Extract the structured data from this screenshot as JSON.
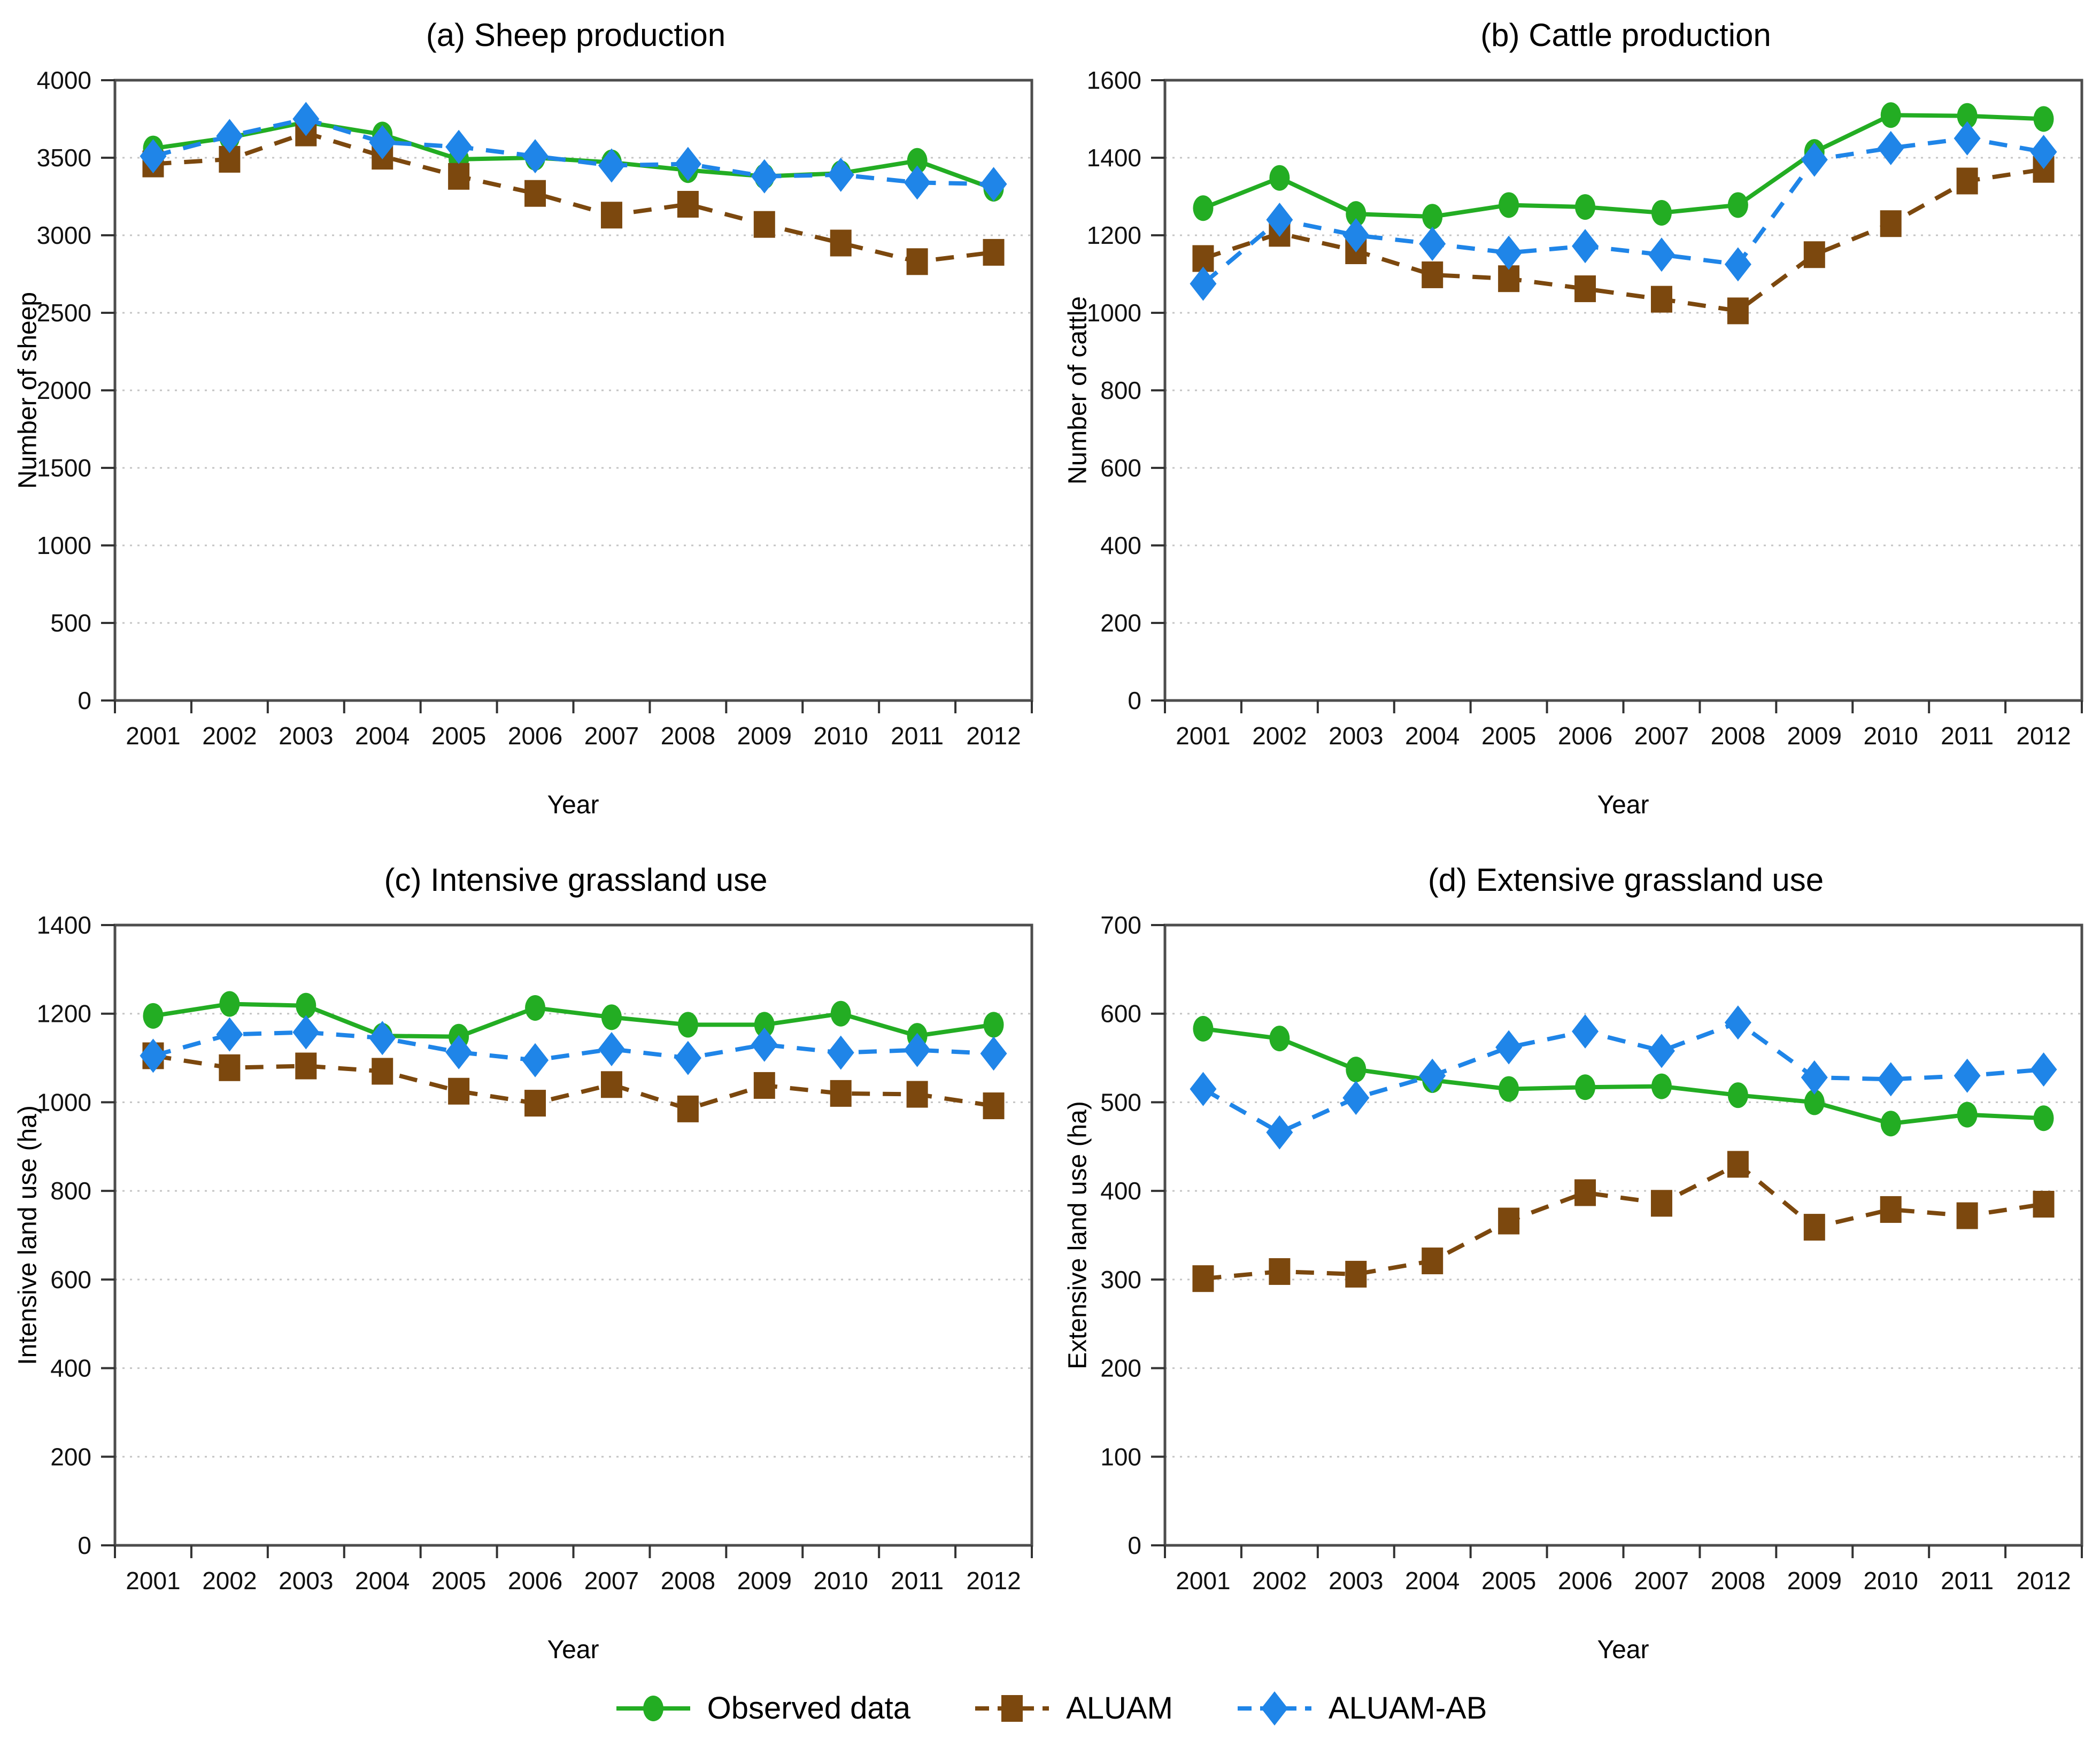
{
  "figure": {
    "x_axis_label": "Year",
    "years": [
      "2001",
      "2002",
      "2003",
      "2004",
      "2005",
      "2006",
      "2007",
      "2008",
      "2009",
      "2010",
      "2011",
      "2012"
    ]
  },
  "legend": [
    {
      "label": "Observed data",
      "color": "#23ad23",
      "marker": "circle",
      "dash": "solid"
    },
    {
      "label": "ALUAM",
      "color": "#7c480e",
      "marker": "square",
      "dash": "dashed"
    },
    {
      "label": "ALUAM-AB",
      "color": "#1f85e8",
      "marker": "diamond",
      "dash": "dashed"
    }
  ],
  "style": {
    "grid_color": "#c4c4c4",
    "box_color": "#4d4d4d",
    "tick_color": "#333333",
    "text_color": "#111111"
  },
  "chart_data": [
    {
      "type": "line",
      "panel": "a",
      "title": "(a) Sheep production",
      "xlabel": "Year",
      "ylabel": "Number of sheep",
      "ylim": [
        0,
        4000
      ],
      "ytick_step": 500,
      "grid": "horizontal-dotted",
      "legend_position": "bottom-shared",
      "categories": [
        "2001",
        "2002",
        "2003",
        "2004",
        "2005",
        "2006",
        "2007",
        "2008",
        "2009",
        "2010",
        "2011",
        "2012"
      ],
      "series": [
        {
          "name": "Observed data",
          "values": [
            3560,
            3630,
            3730,
            3650,
            3490,
            3500,
            3470,
            3420,
            3380,
            3400,
            3480,
            3300
          ]
        },
        {
          "name": "ALUAM",
          "values": [
            3460,
            3490,
            3660,
            3510,
            3380,
            3270,
            3130,
            3200,
            3070,
            2950,
            2830,
            2890
          ]
        },
        {
          "name": "ALUAM-AB",
          "values": [
            3510,
            3640,
            3750,
            3600,
            3570,
            3510,
            3450,
            3460,
            3380,
            3390,
            3340,
            3330
          ]
        }
      ]
    },
    {
      "type": "line",
      "panel": "b",
      "title": "(b) Cattle production",
      "xlabel": "Year",
      "ylabel": "Number of cattle",
      "ylim": [
        0,
        1600
      ],
      "ytick_step": 200,
      "grid": "horizontal-dotted",
      "legend_position": "bottom-shared",
      "categories": [
        "2001",
        "2002",
        "2003",
        "2004",
        "2005",
        "2006",
        "2007",
        "2008",
        "2009",
        "2010",
        "2011",
        "2012"
      ],
      "series": [
        {
          "name": "Observed data",
          "values": [
            1270,
            1348,
            1255,
            1248,
            1278,
            1273,
            1258,
            1278,
            1415,
            1510,
            1508,
            1500
          ]
        },
        {
          "name": "ALUAM",
          "values": [
            1140,
            1205,
            1160,
            1098,
            1088,
            1062,
            1035,
            1005,
            1150,
            1230,
            1340,
            1370
          ]
        },
        {
          "name": "ALUAM-AB",
          "values": [
            1075,
            1240,
            1200,
            1178,
            1155,
            1172,
            1150,
            1125,
            1395,
            1425,
            1450,
            1415
          ]
        }
      ]
    },
    {
      "type": "line",
      "panel": "c",
      "title": "(c) Intensive grassland use",
      "xlabel": "Year",
      "ylabel": "Intensive land use (ha)",
      "ylim": [
        0,
        1400
      ],
      "ytick_step": 200,
      "grid": "horizontal-dotted",
      "legend_position": "bottom-shared",
      "categories": [
        "2001",
        "2002",
        "2003",
        "2004",
        "2005",
        "2006",
        "2007",
        "2008",
        "2009",
        "2010",
        "2011",
        "2012"
      ],
      "series": [
        {
          "name": "Observed data",
          "values": [
            1195,
            1222,
            1218,
            1150,
            1148,
            1213,
            1192,
            1175,
            1175,
            1200,
            1150,
            1175
          ]
        },
        {
          "name": "ALUAM",
          "values": [
            1105,
            1078,
            1082,
            1070,
            1025,
            998,
            1040,
            985,
            1038,
            1020,
            1018,
            992
          ]
        },
        {
          "name": "ALUAM-AB",
          "values": [
            1105,
            1153,
            1158,
            1145,
            1113,
            1095,
            1120,
            1100,
            1130,
            1112,
            1118,
            1110
          ]
        }
      ]
    },
    {
      "type": "line",
      "panel": "d",
      "title": "(d) Extensive grassland use",
      "xlabel": "Year",
      "ylabel": "Extensive land use (ha)",
      "ylim": [
        0,
        700
      ],
      "ytick_step": 100,
      "grid": "horizontal-dotted",
      "legend_position": "bottom-shared",
      "categories": [
        "2001",
        "2002",
        "2003",
        "2004",
        "2005",
        "2006",
        "2007",
        "2008",
        "2009",
        "2010",
        "2011",
        "2012"
      ],
      "series": [
        {
          "name": "Observed data",
          "values": [
            583,
            572,
            537,
            525,
            515,
            517,
            518,
            508,
            500,
            476,
            486,
            482
          ]
        },
        {
          "name": "ALUAM",
          "values": [
            301,
            309,
            306,
            321,
            366,
            398,
            386,
            430,
            359,
            379,
            372,
            385
          ]
        },
        {
          "name": "ALUAM-AB",
          "values": [
            515,
            466,
            505,
            530,
            562,
            580,
            558,
            590,
            528,
            526,
            530,
            537
          ]
        }
      ]
    }
  ]
}
